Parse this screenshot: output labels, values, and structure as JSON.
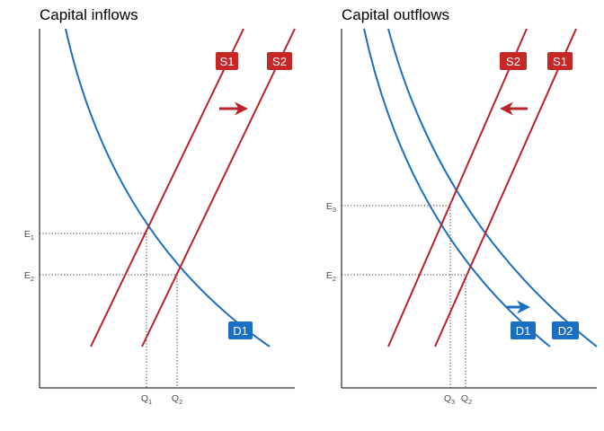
{
  "panels": [
    {
      "title": "Capital inflows",
      "supply_labels": [
        "S1",
        "S2"
      ],
      "demand_labels": [
        "D1"
      ],
      "y_ticks": [
        {
          "main": "E",
          "sub": "1"
        },
        {
          "main": "E",
          "sub": "2"
        }
      ],
      "x_ticks": [
        {
          "main": "Q",
          "sub": "1"
        },
        {
          "main": "Q",
          "sub": "2"
        }
      ],
      "arrow": "right"
    },
    {
      "title": "Capital outflows",
      "supply_labels": [
        "S2",
        "S1"
      ],
      "demand_labels": [
        "D1",
        "D2"
      ],
      "y_ticks": [
        {
          "main": "E",
          "sub": "3"
        },
        {
          "main": "E",
          "sub": "2"
        }
      ],
      "x_ticks": [
        {
          "main": "Q",
          "sub": "3"
        },
        {
          "main": "Q",
          "sub": "2"
        }
      ],
      "arrows": [
        "left",
        "right"
      ]
    }
  ],
  "colors": {
    "supply": "#b8232b",
    "demand": "#1b6fc2",
    "badge_supply": "#c62828",
    "badge_demand": "#1b6fc2"
  }
}
